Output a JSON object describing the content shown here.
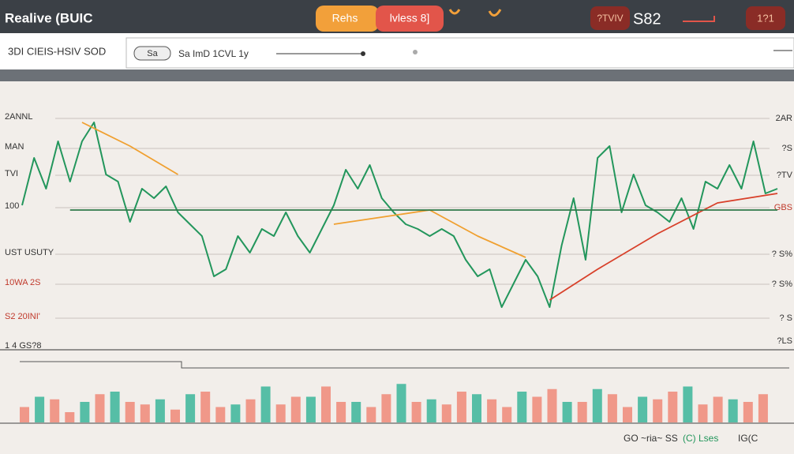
{
  "header": {
    "title": "Realive (BUIC",
    "buttons": [
      "Rehs",
      "lvless 8]"
    ],
    "right_badge": "?TVIV",
    "right_value": "S82",
    "right_button": "1?1"
  },
  "toolbar": {
    "label": "3DI CIEIS-HSIV SOD",
    "pill": "Sa",
    "controls": "Sa ImD 1CVL 1y"
  },
  "chart_data": {
    "type": "line",
    "xlim": [
      0,
      63
    ],
    "ylim": [
      0,
      100
    ],
    "left_labels": [
      "2ANNL",
      "MAN",
      "TVI",
      "100",
      "UST USUTY",
      "10WA 2S",
      "S2 20INI'",
      "1 4 GS?8"
    ],
    "right_labels": [
      "2AR",
      "?S",
      "?TV",
      "GBS",
      "? S%",
      "? S%",
      "? S",
      "?LS"
    ],
    "series": [
      {
        "color": "#23965c",
        "values": [
          60,
          80,
          67,
          87,
          70,
          87,
          95,
          73,
          70,
          53,
          67,
          63,
          68,
          57,
          52,
          47,
          30,
          33,
          47,
          40,
          50,
          47,
          57,
          47,
          40,
          50,
          60,
          75,
          67,
          77,
          63,
          57,
          52,
          50,
          47,
          50,
          47,
          37,
          30,
          33,
          17,
          27,
          37,
          30,
          17,
          43,
          63,
          37,
          80,
          85,
          57,
          73,
          60,
          57,
          53,
          63,
          50,
          70,
          67,
          77,
          67,
          87,
          65,
          67
        ]
      },
      {
        "color": "#f0a030",
        "x": [
          5,
          9,
          13
        ],
        "values": [
          95,
          85,
          73
        ]
      },
      {
        "color": "#f0a030",
        "x": [
          26,
          30,
          34,
          38,
          42
        ],
        "values": [
          52,
          55,
          58,
          47,
          38
        ]
      },
      {
        "color": "#d8402a",
        "x": [
          44,
          48,
          53,
          58,
          63
        ],
        "values": [
          20,
          33,
          48,
          61,
          65
        ]
      },
      {
        "color": "#2f7a4a",
        "x": [
          4,
          63
        ],
        "values": [
          58,
          58
        ]
      }
    ],
    "volume": {
      "type": "bar",
      "ylim": [
        0,
        100
      ],
      "series": [
        {
          "color": "#f08878",
          "values": [
            30,
            null,
            45,
            20,
            null,
            55,
            null,
            40,
            35,
            null,
            25,
            null,
            60,
            30,
            null,
            45,
            null,
            35,
            50,
            null,
            70,
            40,
            null,
            30,
            55,
            null,
            40,
            null,
            35,
            60,
            null,
            45,
            30,
            null,
            50,
            65,
            null,
            40,
            null,
            55,
            30,
            null,
            45,
            60,
            null,
            35,
            50,
            null,
            40,
            55
          ]
        },
        {
          "color": "#3bb59a",
          "values": [
            null,
            50,
            null,
            null,
            40,
            null,
            60,
            null,
            null,
            45,
            null,
            55,
            null,
            null,
            35,
            null,
            70,
            null,
            null,
            50,
            null,
            null,
            40,
            null,
            null,
            75,
            null,
            45,
            null,
            null,
            55,
            null,
            null,
            60,
            null,
            null,
            40,
            null,
            65,
            null,
            null,
            50,
            null,
            null,
            70,
            null,
            null,
            45,
            null,
            null
          ]
        }
      ]
    },
    "footer_labels": [
      "GO ~ria~ SS",
      "(C) Lses",
      "IG(C"
    ]
  }
}
